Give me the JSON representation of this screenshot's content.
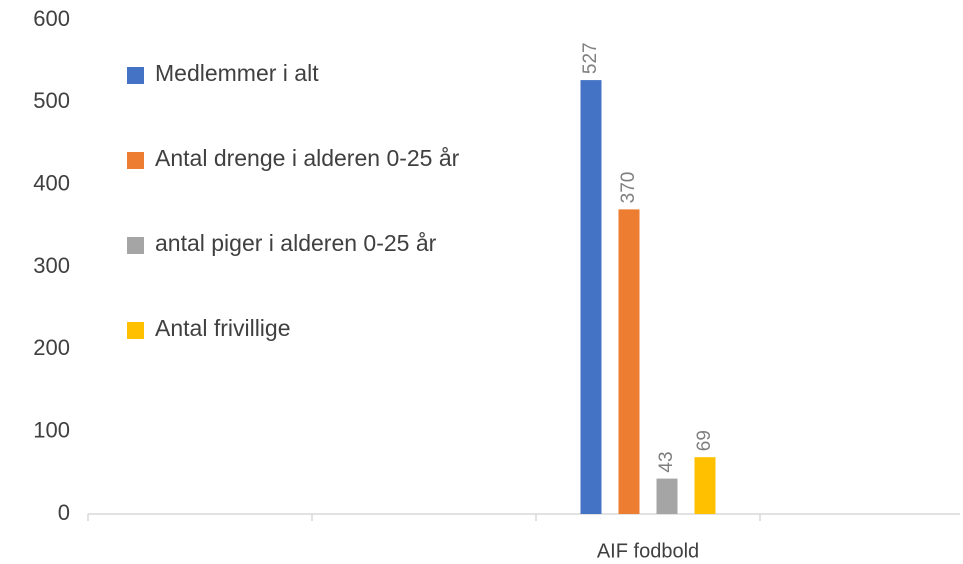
{
  "chart_data": {
    "type": "bar",
    "categories": [
      null,
      null,
      "AIF fodbold",
      null
    ],
    "series": [
      {
        "name": "Medlemmer i alt",
        "color": "#4472c4",
        "values": [
          null,
          null,
          527,
          null
        ]
      },
      {
        "name": "Antal drenge i alderen 0-25 år",
        "color": "#ed7d31",
        "values": [
          null,
          null,
          370,
          null
        ]
      },
      {
        "name": "antal piger i alderen 0-25 år",
        "color": "#a5a5a5",
        "values": [
          null,
          null,
          43,
          null
        ]
      },
      {
        "name": "Antal frivillige",
        "color": "#ffc000",
        "values": [
          null,
          null,
          69,
          null
        ]
      }
    ],
    "ylim": [
      0,
      600
    ],
    "yticks": [
      0,
      100,
      200,
      300,
      400,
      500,
      600
    ],
    "grid": false,
    "legend": "left"
  }
}
